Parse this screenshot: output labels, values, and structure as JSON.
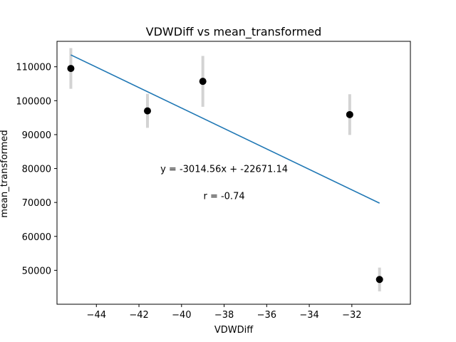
{
  "chart_data": {
    "type": "scatter",
    "title": "VDWDiff vs mean_transformed",
    "xlabel": "VDWDiff",
    "ylabel": "mean_transformed",
    "xlim": [
      -45.85,
      -29.25
    ],
    "ylim": [
      40000,
      117500
    ],
    "xticks": [
      -44,
      -42,
      -40,
      -38,
      -36,
      -34,
      -32
    ],
    "yticks": [
      50000,
      60000,
      70000,
      80000,
      90000,
      100000,
      110000
    ],
    "grid": false,
    "colors": {
      "points": "#000000",
      "errorbars": "#d3d3d3",
      "fit_line": "#1f77b4"
    },
    "points": [
      {
        "x": -45.2,
        "y": 109500,
        "err": 6000
      },
      {
        "x": -41.6,
        "y": 97000,
        "err": 5000
      },
      {
        "x": -39.0,
        "y": 105700,
        "err": 7500
      },
      {
        "x": -32.1,
        "y": 95900,
        "err": 6000
      },
      {
        "x": -30.7,
        "y": 47300,
        "err": 3500
      }
    ],
    "fit_line": {
      "x": [
        -45.2,
        -30.7
      ],
      "slope": -3014.56,
      "intercept": -22671.14
    },
    "annotations": [
      {
        "text": "y = -3014.56x + -22671.14",
        "x": -38.0,
        "y": 79000
      },
      {
        "text": "r = -0.74",
        "x": -38.0,
        "y": 71000
      }
    ]
  }
}
